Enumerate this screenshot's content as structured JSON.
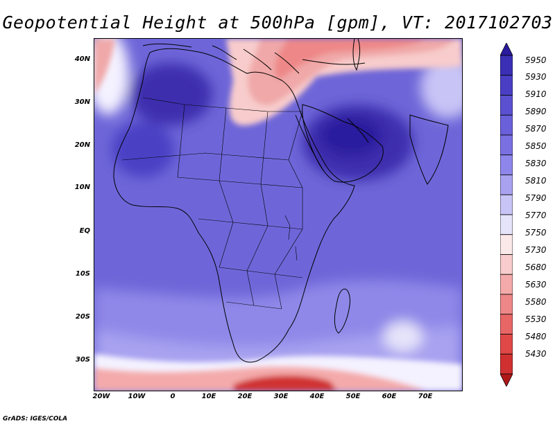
{
  "title": "Geopotential Height at 500hPa [gpm], VT: 2017102703",
  "credit": "GrADS: IGES/COLA",
  "axes": {
    "lat_labels": [
      "40N",
      "30N",
      "20N",
      "10N",
      "EQ",
      "10S",
      "20S",
      "30S"
    ],
    "lon_labels": [
      "20W",
      "10W",
      "0",
      "10E",
      "20E",
      "30E",
      "40E",
      "50E",
      "60E",
      "70E"
    ]
  },
  "colorbar": {
    "levels": [
      "5950",
      "5930",
      "5910",
      "5890",
      "5870",
      "5850",
      "5830",
      "5810",
      "5790",
      "5770",
      "5750",
      "5730",
      "5680",
      "5630",
      "5580",
      "5530",
      "5480",
      "5430"
    ],
    "colors": [
      "#2a1a9e",
      "#3a2fb5",
      "#4a3fc4",
      "#5a50d0",
      "#6a60da",
      "#7a70e2",
      "#8e86ea",
      "#a8a2f0",
      "#c8c4f6",
      "#e6e4fa",
      "#fbe8e8",
      "#f8cccc",
      "#f4aaaa",
      "#ee8888",
      "#e86666",
      "#e04848",
      "#d03030",
      "#b01818"
    ]
  },
  "map_colors": {
    "high": "#3d2fae",
    "mid": "#6a61d6",
    "low": "#8f88e8",
    "neutral": "#f4f2ff",
    "ridge_low": "#f0a8a8",
    "trough": "#d84040"
  }
}
